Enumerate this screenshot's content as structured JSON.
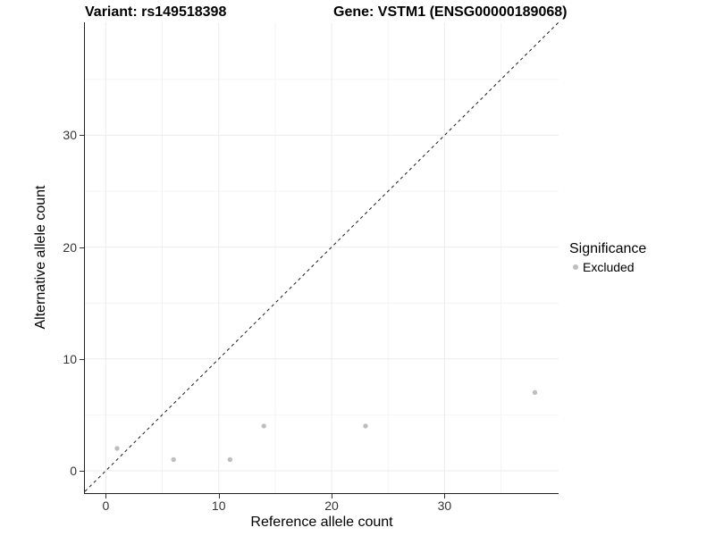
{
  "titles": {
    "variant": "Variant: rs149518398",
    "gene": "Gene: VSTM1 (ENSG00000189068)"
  },
  "axes": {
    "x_label": "Reference allele count",
    "y_label": "Alternative allele count"
  },
  "legend": {
    "title": "Significance",
    "items": [
      {
        "label": "Excluded",
        "color": "#bebebe"
      }
    ]
  },
  "colors": {
    "background": "#ffffff",
    "grid_major": "#ebebeb",
    "grid_minor": "#f4f4f4",
    "axis_line": "#222222",
    "tick_label": "#333333",
    "identity_line": "#1a1a1a",
    "point": "#bebebe"
  },
  "chart_data": {
    "type": "scatter",
    "title": "Variant: rs149518398   Gene: VSTM1 (ENSG00000189068)",
    "xlabel": "Reference allele count",
    "ylabel": "Alternative allele count",
    "series": [
      {
        "name": "Excluded",
        "color": "#bebebe",
        "points": [
          [
            1,
            2
          ],
          [
            6,
            1
          ],
          [
            11,
            1
          ],
          [
            14,
            4
          ],
          [
            23,
            4
          ],
          [
            38,
            7
          ]
        ]
      }
    ],
    "reference_line": {
      "kind": "identity-y-equals-x",
      "style": "dashed",
      "color": "#1a1a1a"
    },
    "x_ticks": [
      0,
      10,
      20,
      30
    ],
    "y_ticks": [
      0,
      10,
      20,
      30
    ],
    "x_minor_ticks": [
      5,
      15,
      25,
      35
    ],
    "y_minor_ticks": [
      5,
      15,
      25,
      35
    ],
    "xlim": [
      -1.85,
      40.1
    ],
    "ylim": [
      -2.0,
      40.1
    ],
    "grid": true,
    "legend_position": "right"
  }
}
